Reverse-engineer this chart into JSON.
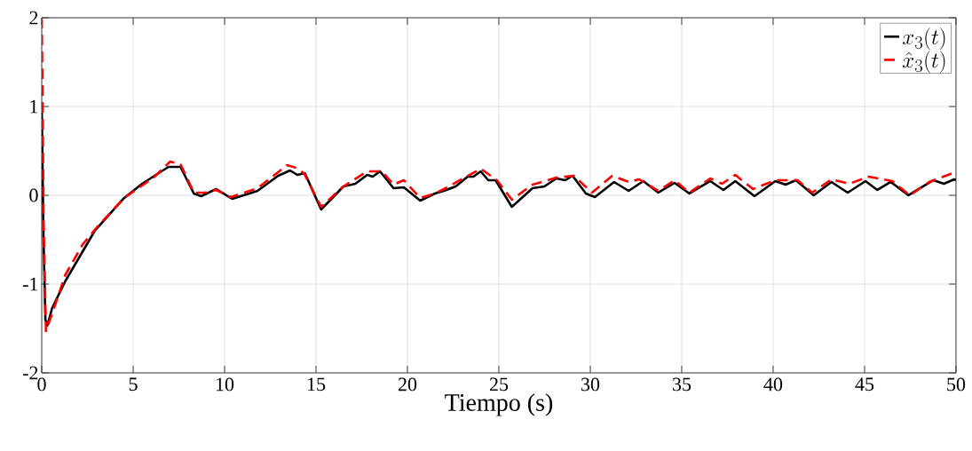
{
  "chart_data": {
    "type": "line",
    "xlabel": "Tiempo (s)",
    "xlim": [
      0,
      50
    ],
    "ylim": [
      -2,
      2
    ],
    "xticks": [
      0,
      5,
      10,
      15,
      20,
      25,
      30,
      35,
      40,
      45,
      50
    ],
    "yticks": [
      -2,
      -1,
      0,
      1,
      2
    ],
    "grid": true,
    "legend": "top right",
    "series": [
      {
        "name": "x_3(t)",
        "color": "#000000",
        "line_style": "solid",
        "x": [
          0,
          0.1,
          0.2,
          0.3,
          0.57,
          1.28,
          2.9,
          4.51,
          5.49,
          6.62,
          6.94,
          7.59,
          8.32,
          8.72,
          9.53,
          10.42,
          11.8,
          12.93,
          13.58,
          13.98,
          14.39,
          15.28,
          16.5,
          17.15,
          17.8,
          18.1,
          18.5,
          19.24,
          19.8,
          20.7,
          21.5,
          21.99,
          22.64,
          23.29,
          23.61,
          24.01,
          24.42,
          24.82,
          25.71,
          26.84,
          27.49,
          28.14,
          28.63,
          29.03,
          29.76,
          30.25,
          31.3,
          32.1,
          32.9,
          33.72,
          34.61,
          35.42,
          36.56,
          37.28,
          37.93,
          38.98,
          40.12,
          40.68,
          41.25,
          42.22,
          43.19,
          44.08,
          45.05,
          45.7,
          46.43,
          47.4,
          48.77,
          49.34,
          49.9,
          50
        ],
        "values": [
          1,
          -0.5,
          -1.4,
          -1.47,
          -1.27,
          -0.97,
          -0.4,
          -0.03,
          0.13,
          0.28,
          0.32,
          0.32,
          0.02,
          -0.01,
          0.07,
          -0.04,
          0.05,
          0.22,
          0.28,
          0.23,
          0.25,
          -0.16,
          0.1,
          0.13,
          0.23,
          0.21,
          0.27,
          0.08,
          0.09,
          -0.06,
          0.02,
          0.05,
          0.1,
          0.21,
          0.21,
          0.27,
          0.17,
          0.17,
          -0.13,
          0.08,
          0.1,
          0.19,
          0.17,
          0.22,
          0.02,
          -0.02,
          0.15,
          0.05,
          0.16,
          0.03,
          0.14,
          0.02,
          0.16,
          0.06,
          0.16,
          -0.01,
          0.16,
          0.12,
          0.17,
          0,
          0.15,
          0.03,
          0.16,
          0.06,
          0.15,
          0,
          0.17,
          0.13,
          0.18,
          0.17
        ]
      },
      {
        "name": "\\hat{x}_3(t)",
        "color": "#ff0000",
        "line_style": "dashed",
        "x": [
          0,
          0.05,
          0.1,
          0.23,
          0.79,
          1.28,
          2.25,
          3.06,
          4.51,
          6.12,
          7.02,
          7.59,
          8.32,
          8.9,
          9.53,
          10.34,
          11.8,
          13.42,
          14.06,
          14.39,
          15.28,
          16.5,
          17.8,
          18.6,
          19.24,
          19.8,
          20.7,
          21.5,
          21.99,
          23.13,
          24.01,
          24.9,
          25.71,
          26.84,
          28.14,
          29.11,
          30.09,
          31.2,
          32.1,
          32.67,
          33.72,
          34.61,
          35.42,
          36.56,
          37.2,
          37.93,
          38.9,
          40.12,
          41.33,
          42.14,
          43.19,
          44.16,
          45.21,
          46.51,
          47.48,
          48.53,
          49.83,
          50
        ],
        "values": [
          2,
          1,
          -0.3,
          -1.53,
          -1.2,
          -0.9,
          -0.55,
          -0.35,
          -0.03,
          0.2,
          0.38,
          0.35,
          0.03,
          0.03,
          0.06,
          -0.02,
          0.08,
          0.34,
          0.3,
          0.23,
          -0.13,
          0.1,
          0.27,
          0.27,
          0.12,
          0.17,
          -0.03,
          0.02,
          0.07,
          0.2,
          0.3,
          0.17,
          -0.05,
          0.12,
          0.2,
          0.22,
          0.03,
          0.22,
          0.15,
          0.18,
          0.05,
          0.17,
          0.03,
          0.19,
          0.13,
          0.23,
          0.07,
          0.17,
          0.17,
          0.03,
          0.18,
          0.13,
          0.21,
          0.16,
          0,
          0.15,
          0.25,
          0.25
        ]
      }
    ]
  }
}
